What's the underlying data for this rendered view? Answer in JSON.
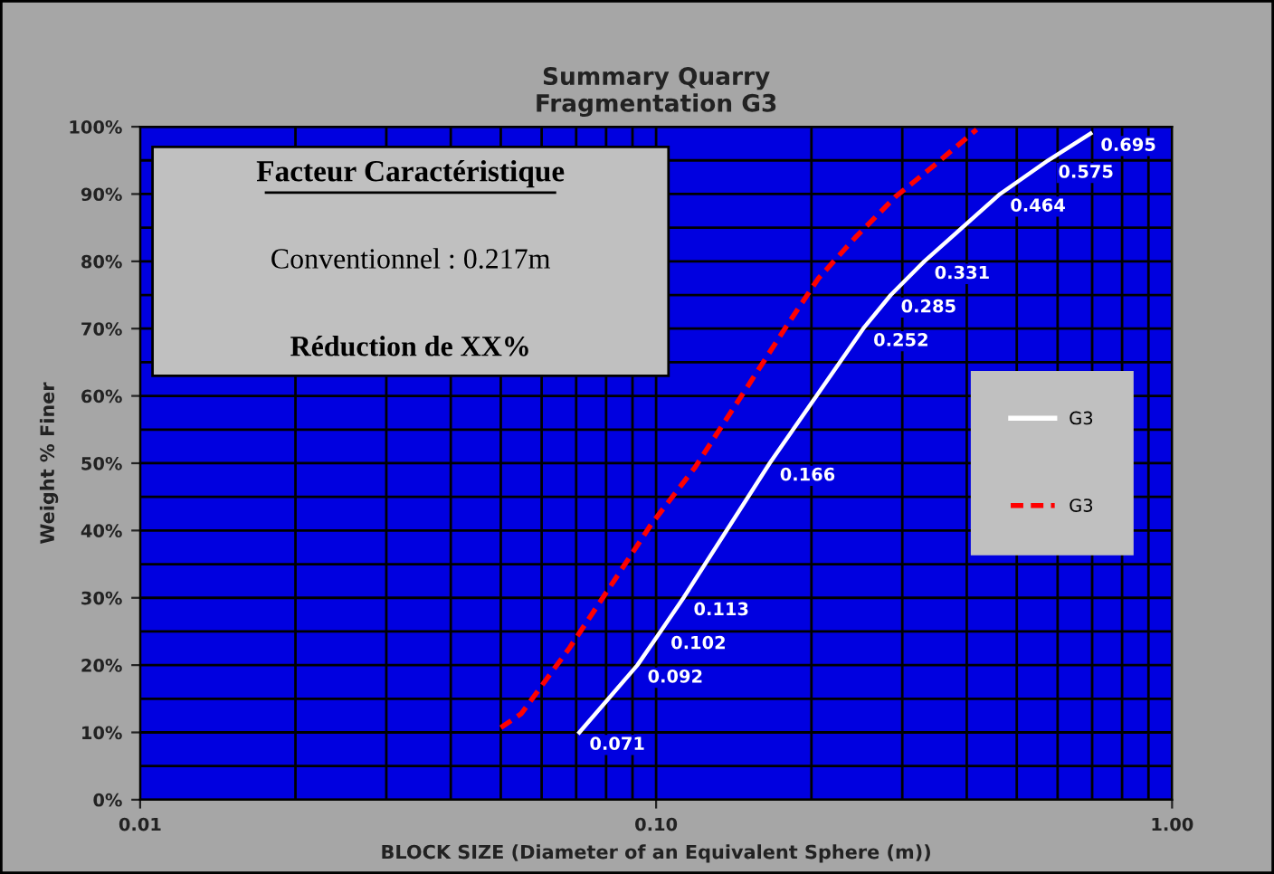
{
  "chart_data": {
    "type": "line",
    "title": "Summary Quarry\nFragmentation G3",
    "xlabel": "BLOCK SIZE (Diameter of an Equivalent Sphere (m))",
    "ylabel": "Weight % Finer",
    "series": [
      {
        "name": "G3",
        "color": "#ffffff",
        "line_style": "solid",
        "x": [
          0.071,
          0.092,
          0.102,
          0.113,
          0.166,
          0.252,
          0.285,
          0.331,
          0.464,
          0.575,
          0.695
        ],
        "values": [
          10,
          20,
          25,
          30,
          50,
          70,
          75,
          80,
          90,
          95,
          99
        ]
      },
      {
        "name": "G3",
        "color": "#ff0000",
        "line_style": "dashed",
        "x": [
          0.05,
          0.0548,
          0.068,
          0.0845,
          0.0978,
          0.119,
          0.151,
          0.178,
          0.206,
          0.243,
          0.291,
          0.349,
          0.418
        ],
        "values": [
          10.7,
          12.8,
          22.6,
          33.5,
          40.9,
          49.4,
          61.6,
          70.1,
          77.4,
          83.5,
          89.6,
          94.5,
          99.6
        ]
      }
    ],
    "log": "x",
    "xlim": [
      0.01,
      1
    ],
    "ylim": [
      0,
      100
    ],
    "xticks": [
      {
        "value": 0.01,
        "label": "0.01"
      },
      {
        "value": 0.1,
        "label": "0.10"
      },
      {
        "value": 1,
        "label": "1.00"
      }
    ],
    "yticks": [
      {
        "value": 0,
        "label": "0%"
      },
      {
        "value": 10,
        "label": "10%"
      },
      {
        "value": 20,
        "label": "20%"
      },
      {
        "value": 30,
        "label": "30%"
      },
      {
        "value": 40,
        "label": "40%"
      },
      {
        "value": 50,
        "label": "50%"
      },
      {
        "value": 60,
        "label": "60%"
      },
      {
        "value": 70,
        "label": "70%"
      },
      {
        "value": 80,
        "label": "80%"
      },
      {
        "value": 90,
        "label": "90%"
      },
      {
        "value": 100,
        "label": "100%"
      }
    ],
    "grid": true,
    "legend": "right",
    "marker": "none",
    "annotations": [
      "Facteur Caractéristique",
      "Conventionnel : 0.217m",
      "Réduction de XX%",
      {
        "text": "0.071",
        "x": 0.071,
        "y": 10
      },
      {
        "text": "0.092",
        "x": 0.092,
        "y": 20
      },
      {
        "text": "0.102",
        "x": 0.102,
        "y": 25
      },
      {
        "text": "0.113",
        "x": 0.113,
        "y": 30
      },
      {
        "text": "0.166",
        "x": 0.166,
        "y": 50
      },
      {
        "text": "0.252",
        "x": 0.252,
        "y": 70
      },
      {
        "text": "0.285",
        "x": 0.285,
        "y": 75
      },
      {
        "text": "0.331",
        "x": 0.331,
        "y": 80
      },
      {
        "text": "0.464",
        "x": 0.464,
        "y": 90
      },
      {
        "text": "0.575",
        "x": 0.575,
        "y": 95
      },
      {
        "text": "0.695",
        "x": 0.695,
        "y": 99
      }
    ]
  }
}
